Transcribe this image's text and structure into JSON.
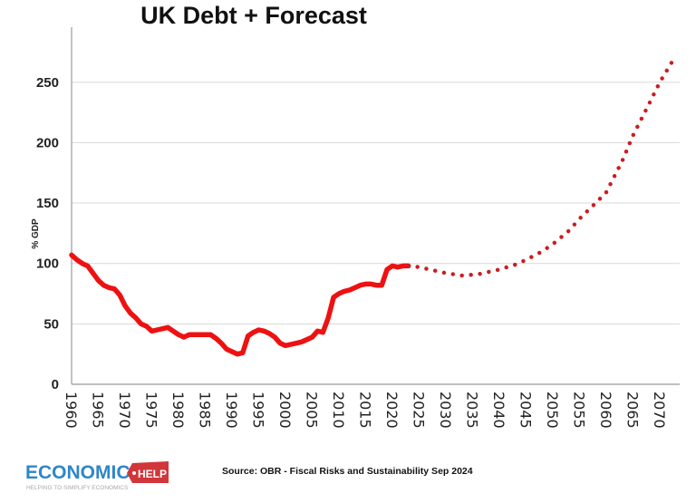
{
  "chart_data": {
    "type": "line",
    "title": "UK Debt + Forecast",
    "xlabel": "",
    "ylabel": "% GDP",
    "xlim": [
      1960,
      2074
    ],
    "ylim": [
      0,
      300
    ],
    "grid": true,
    "y_ticks": [
      0,
      50,
      100,
      150,
      200,
      250
    ],
    "x_ticks": [
      "1960",
      "1965",
      "1970",
      "1975",
      "1980",
      "1985",
      "1990",
      "1995",
      "2000",
      "2005",
      "2010",
      "2015",
      "2020",
      "2025",
      "2030",
      "2035",
      "2040",
      "2045",
      "2050",
      "2055",
      "2060",
      "2065",
      "2070"
    ],
    "series": [
      {
        "style": "solid",
        "color": "#ee1111",
        "x": [
          1960,
          1961,
          1962,
          1963,
          1964,
          1965,
          1966,
          1967,
          1968,
          1969,
          1970,
          1971,
          1972,
          1973,
          1974,
          1975,
          1976,
          1977,
          1978,
          1979,
          1980,
          1981,
          1982,
          1983,
          1984,
          1985,
          1986,
          1987,
          1988,
          1989,
          1990,
          1991,
          1992,
          1993,
          1994,
          1995,
          1996,
          1997,
          1998,
          1999,
          2000,
          2001,
          2002,
          2003,
          2004,
          2005,
          2006,
          2007,
          2008,
          2009,
          2010,
          2011,
          2012,
          2013,
          2014,
          2015,
          2016,
          2017,
          2018,
          2019,
          2020,
          2021,
          2022,
          2023
        ],
        "y": [
          107,
          103,
          100,
          98,
          92,
          86,
          82,
          80,
          79,
          74,
          65,
          59,
          55,
          50,
          48,
          44,
          45,
          46,
          47,
          44,
          41,
          39,
          41,
          41,
          41,
          41,
          41,
          38,
          34,
          29,
          27,
          25,
          26,
          40,
          43,
          45,
          44,
          42,
          39,
          34,
          32,
          33,
          34,
          35,
          37,
          39,
          44,
          43,
          55,
          72,
          75,
          77,
          78,
          80,
          82,
          83,
          83,
          82,
          82,
          95,
          98,
          97,
          98,
          98
        ]
      },
      {
        "style": "dotted",
        "color": "#cc1c22",
        "x": [
          2023,
          2025,
          2028,
          2030,
          2033,
          2036,
          2040,
          2043,
          2045,
          2048,
          2050,
          2053,
          2055,
          2058,
          2060,
          2063,
          2065,
          2068,
          2070,
          2073
        ],
        "y": [
          98,
          97,
          94,
          92,
          90,
          91,
          95,
          99,
          103,
          110,
          116,
          127,
          137,
          150,
          159,
          185,
          206,
          232,
          250,
          272
        ]
      }
    ]
  },
  "footer": {
    "logo_main": "ECONOMICS",
    "logo_tag": "HELP",
    "logo_tagline": "HELPING TO SIMPLIFY ECONOMICS",
    "source": "Source: OBR - Fiscal Risks and Sustainability Sep 2024"
  },
  "colors": {
    "grid": "#d9d9d9",
    "axis": "#999999",
    "logo_blue": "#2f86c7",
    "logo_red": "#d0363a"
  }
}
